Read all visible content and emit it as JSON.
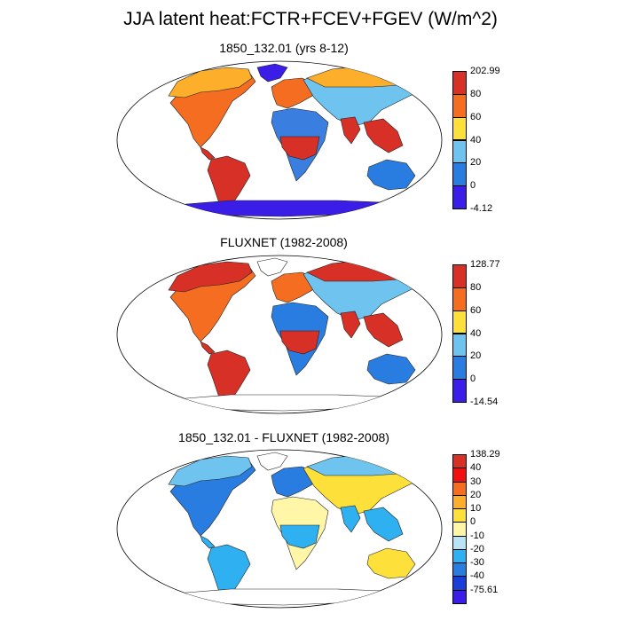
{
  "title": "JJA latent heat:FCTR+FCEV+FGEV (W/m^2)",
  "panels": [
    {
      "title": "1850_132.01 (yrs 8-12)",
      "colorbar": {
        "labels": [
          "202.99",
          "80",
          "60",
          "40",
          "20",
          "0",
          "-4.12"
        ],
        "colors": [
          "#d73027",
          "#f46d20",
          "#fee03b",
          "#6fc3ef",
          "#2a7de0",
          "#3a1ee8"
        ]
      },
      "land_palette": {
        "boreal": "#fdae2a",
        "temperate": "#f46d20",
        "tropical": "#d73027",
        "arid": "#3a7ee0",
        "semiarid": "#6fc3ef",
        "ice": "#3a1ee8",
        "australia": "#2a7de0"
      }
    },
    {
      "title": "FLUXNET (1982-2008)",
      "colorbar": {
        "labels": [
          "128.77",
          "80",
          "60",
          "40",
          "20",
          "0",
          "-14.54"
        ],
        "colors": [
          "#d73027",
          "#f46d20",
          "#fee03b",
          "#6fc3ef",
          "#2a7de0",
          "#3a1ee8"
        ]
      },
      "land_palette": {
        "boreal": "#d73027",
        "temperate": "#f46d20",
        "tropical": "#d73027",
        "arid": "#2a7de0",
        "semiarid": "#6fc3ef",
        "ice": "#ffffff",
        "australia": "#2a7de0"
      }
    },
    {
      "title": "1850_132.01 - FLUXNET (1982-2008)",
      "colorbar": {
        "labels": [
          "138.29",
          "40",
          "30",
          "20",
          "10",
          "0",
          "-10",
          "-20",
          "-30",
          "-40",
          "-75.61"
        ],
        "colors": [
          "#d73027",
          "#f01010",
          "#f46d20",
          "#fdae2a",
          "#fee03b",
          "#fff6a8",
          "#b8e4f5",
          "#2fb0f0",
          "#2a7de0",
          "#1a3fd8",
          "#3a1ee8"
        ]
      },
      "land_palette": {
        "boreal": "#6fc3ef",
        "temperate": "#2a7de0",
        "tropical": "#2fb0f0",
        "arid": "#fff6a8",
        "semiarid": "#fee03b",
        "ice": "#ffffff",
        "australia": "#fee03b"
      }
    }
  ]
}
